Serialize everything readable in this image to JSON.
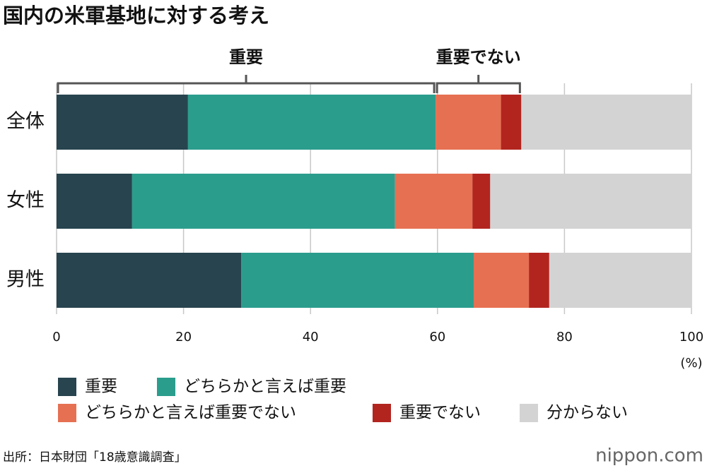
{
  "chart_data": {
    "type": "stacked-barh",
    "title": "国内の米軍基地に対する考え",
    "categories": [
      "全体",
      "女性",
      "男性"
    ],
    "series": [
      {
        "name": "重要",
        "color": "#27444f",
        "values": [
          20.7,
          11.9,
          29.1
        ]
      },
      {
        "name": "どちらかと言えば重要",
        "color": "#2b9d8d",
        "values": [
          39.0,
          41.4,
          36.6
        ]
      },
      {
        "name": "どちらかと言えば重要でない",
        "color": "#e67052",
        "values": [
          10.3,
          12.2,
          8.7
        ]
      },
      {
        "name": "重要でない",
        "color": "#b2251f",
        "values": [
          3.2,
          2.8,
          3.2
        ]
      },
      {
        "name": "分からない",
        "color": "#d3d3d3",
        "values": [
          26.8,
          31.7,
          22.4
        ]
      }
    ],
    "annotations": [
      "重要",
      "重要でない"
    ],
    "xlim": [
      0,
      100
    ],
    "xticks": [
      0,
      20,
      40,
      60,
      80,
      100
    ],
    "x_unit": "(%)",
    "grid": true,
    "source": "出所：日本財団「18歳意識調査」",
    "logo": "nippon.com"
  }
}
